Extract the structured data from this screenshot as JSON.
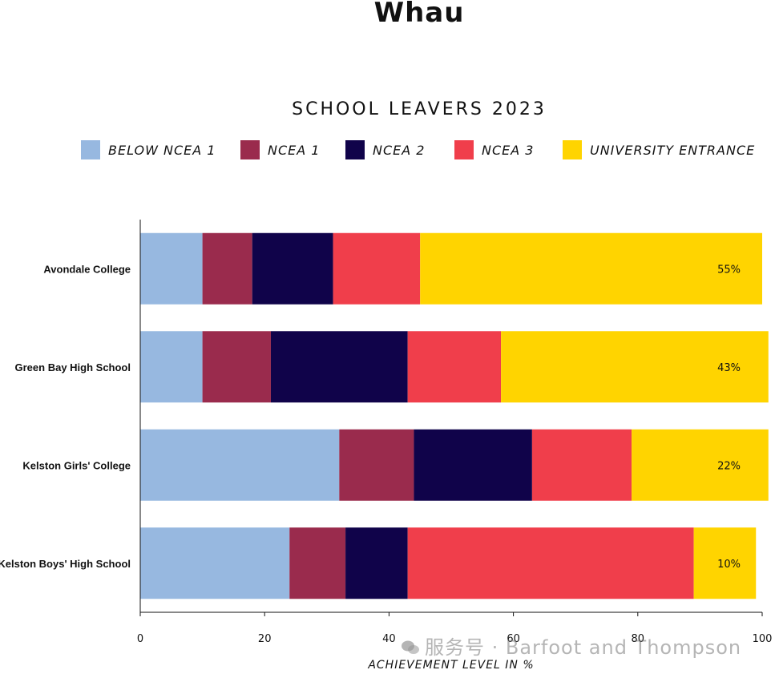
{
  "page_title": "Whau",
  "watermark": "服务号 · Barfoot and Thompson",
  "chart_data": {
    "type": "bar",
    "orientation": "horizontal",
    "stacked": true,
    "title": "SCHOOL LEAVERS 2023",
    "xlabel": "ACHIEVEMENT LEVEL IN %",
    "ylabel": "",
    "xlim": [
      0,
      100
    ],
    "xticks": [
      "0",
      "20",
      "40",
      "60",
      "80",
      "100"
    ],
    "legend_position": "top",
    "categories": [
      "Avondale College",
      "Green Bay High School",
      "Kelston Girls' College",
      "Kelston Boys' High School"
    ],
    "series": [
      {
        "name": "BELOW NCEA 1",
        "color": "#97b8e0",
        "values": [
          10,
          10,
          32,
          24
        ]
      },
      {
        "name": "NCEA 1",
        "color": "#9a2b4d",
        "values": [
          8,
          11,
          12,
          9
        ]
      },
      {
        "name": "NCEA 2",
        "color": "#10034a",
        "values": [
          13,
          22,
          19,
          10
        ]
      },
      {
        "name": "NCEA 3",
        "color": "#f03e4b",
        "values": [
          14,
          15,
          16,
          46
        ]
      },
      {
        "name": "UNIVERSITY ENTRANCE",
        "color": "#ffd400",
        "values": [
          55,
          43,
          22,
          10
        ]
      }
    ],
    "data_labels": [
      "55%",
      "43%",
      "22%",
      "10%"
    ]
  }
}
